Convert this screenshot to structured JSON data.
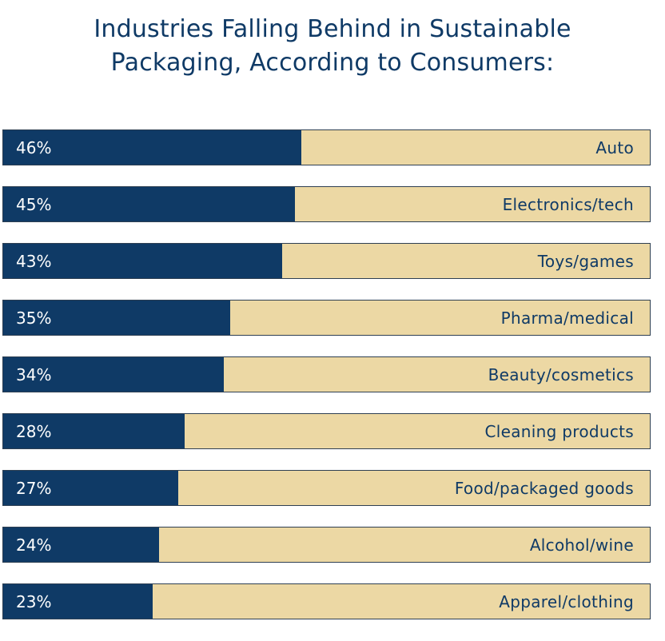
{
  "chart_data": {
    "type": "bar",
    "orientation": "horizontal",
    "title": "Industries Falling Behind in Sustainable Packaging, According to Consumers:",
    "title_lines": [
      "Industries Falling Behind in Sustainable",
      "Packaging, According to Consumers:"
    ],
    "xlabel": "",
    "ylabel": "",
    "xlim": [
      0,
      100
    ],
    "grid": false,
    "categories": [
      "Auto",
      "Electronics/tech",
      "Toys/games",
      "Pharma/medical",
      "Beauty/cosmetics",
      "Cleaning products",
      "Food/packaged goods",
      "Alcohol/wine",
      "Apparel/clothing"
    ],
    "values": [
      46,
      45,
      43,
      35,
      34,
      28,
      27,
      24,
      23
    ],
    "value_labels": [
      "46%",
      "45%",
      "43%",
      "35%",
      "34%",
      "28%",
      "27%",
      "24%",
      "23%"
    ],
    "colors": {
      "bar": "#0f3a66",
      "track": "#ecd8a4",
      "title": "#0f3a66"
    }
  }
}
